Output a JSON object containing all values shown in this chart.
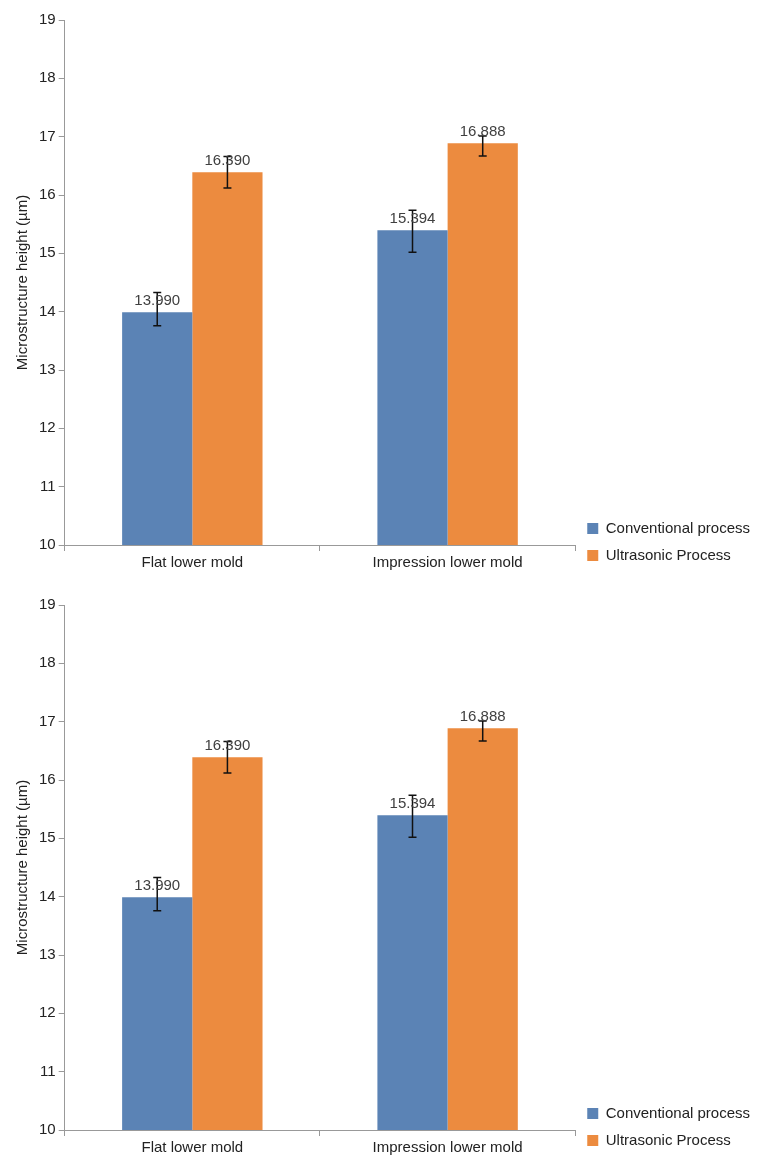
{
  "chart_data": [
    {
      "type": "bar",
      "ylabel": "Microstructure height (µm)",
      "categories": [
        "Flat lower mold",
        "Impression lower mold"
      ],
      "series": [
        {
          "name": "Conventional process",
          "color": "#5b83b5",
          "values": [
            13.99,
            15.394
          ],
          "value_labels": [
            "13.990",
            "15.394"
          ],
          "errors": [
            [
              13.76,
              14.33
            ],
            [
              15.02,
              15.74
            ]
          ]
        },
        {
          "name": "Ultrasonic Process",
          "color": "#ec8b3f",
          "values": [
            16.39,
            16.888
          ],
          "value_labels": [
            "16.390",
            "16.888"
          ],
          "errors": [
            [
              16.12,
              16.66
            ],
            [
              16.67,
              17.01
            ]
          ]
        }
      ],
      "ylim": [
        10,
        19
      ],
      "yticks": [
        10,
        11,
        12,
        13,
        14,
        15,
        16,
        17,
        18,
        19
      ],
      "grid": false,
      "legend": "right"
    },
    {
      "type": "bar",
      "ylabel": "Microstructure height (µm)",
      "categories": [
        "Flat lower mold",
        "Impression lower mold"
      ],
      "series": [
        {
          "name": "Conventional process",
          "color": "#5b83b5",
          "values": [
            13.99,
            15.394
          ],
          "value_labels": [
            "13.990",
            "15.394"
          ],
          "errors": [
            [
              13.76,
              14.33
            ],
            [
              15.02,
              15.74
            ]
          ]
        },
        {
          "name": "Ultrasonic Process",
          "color": "#ec8b3f",
          "values": [
            16.39,
            16.888
          ],
          "value_labels": [
            "16.390",
            "16.888"
          ],
          "errors": [
            [
              16.12,
              16.66
            ],
            [
              16.67,
              17.01
            ]
          ]
        }
      ],
      "ylim": [
        10,
        19
      ],
      "yticks": [
        10,
        11,
        12,
        13,
        14,
        15,
        16,
        17,
        18,
        19
      ],
      "grid": false,
      "legend": "right"
    }
  ]
}
